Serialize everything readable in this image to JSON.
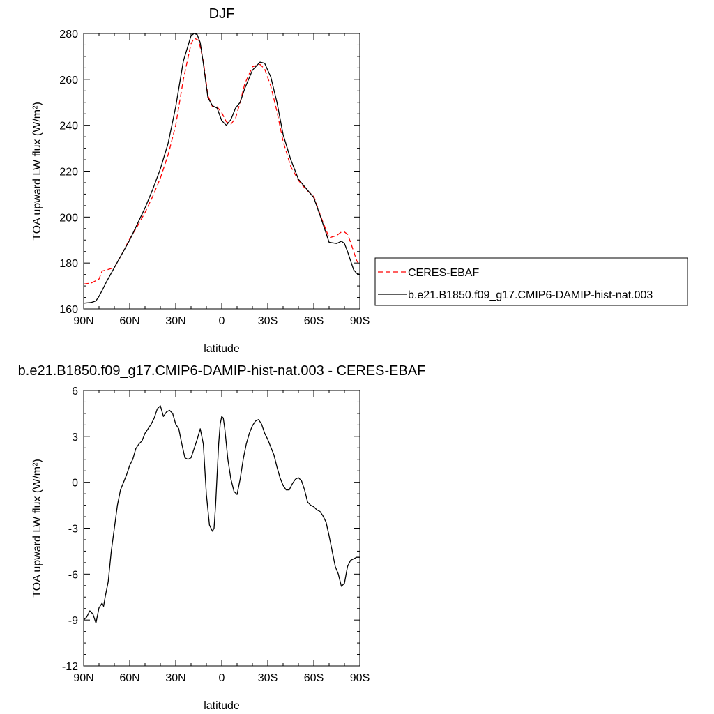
{
  "chart_data": [
    {
      "type": "line",
      "title": "DJF",
      "xlabel": "latitude",
      "ylabel": "TOA upward LW flux (W/m²)",
      "xlim": [
        90,
        -90
      ],
      "ylim": [
        160,
        280
      ],
      "xticks": [
        90,
        60,
        30,
        0,
        -30,
        -60,
        -90
      ],
      "xtick_labels": [
        "90N",
        "60N",
        "30N",
        "0",
        "30S",
        "60S",
        "90S"
      ],
      "yticks": [
        160,
        180,
        200,
        220,
        240,
        260,
        280
      ],
      "ytick_labels": [
        "160",
        "180",
        "200",
        "220",
        "240",
        "260",
        "280"
      ],
      "legend_position": "right",
      "series": [
        {
          "name": "CERES-EBAF",
          "color": "#ff0000",
          "dash": "dashed",
          "x": [
            90,
            85,
            80,
            78,
            75,
            70,
            65,
            60,
            55,
            50,
            45,
            40,
            35,
            30,
            25,
            20,
            18,
            15,
            12,
            9,
            6,
            3,
            0,
            -3,
            -6,
            -9,
            -12,
            -15,
            -20,
            -25,
            -28,
            -32,
            -36,
            -40,
            -45,
            -50,
            -55,
            -60,
            -65,
            -70,
            -75,
            -78,
            -80,
            -82,
            -84,
            -86,
            -88,
            -90
          ],
          "y": [
            170.8,
            171.3,
            173,
            176.5,
            177,
            178,
            184,
            190.5,
            196,
            202,
            209,
            217,
            227,
            240,
            260,
            275.5,
            278,
            277,
            268,
            253,
            248,
            248,
            245.5,
            241.5,
            240.5,
            243,
            250,
            258,
            265.5,
            266.5,
            264.5,
            257,
            246,
            233,
            222,
            216,
            212,
            209,
            199.5,
            191,
            192,
            193.5,
            193.5,
            192.5,
            189,
            185,
            181,
            179
          ]
        },
        {
          "name": "b.e21.B1850.f09_g17.CMIP6-DAMIP-hist-nat.003",
          "color": "#000000",
          "dash": "solid",
          "x": [
            90,
            85,
            82,
            80,
            78,
            75,
            70,
            65,
            60,
            55,
            50,
            45,
            40,
            35,
            30,
            25,
            20,
            18,
            16,
            14,
            12,
            9,
            6,
            3,
            0,
            -3,
            -6,
            -9,
            -12,
            -15,
            -20,
            -25,
            -28,
            -32,
            -36,
            -40,
            -45,
            -50,
            -55,
            -60,
            -65,
            -70,
            -75,
            -78,
            -80,
            -82,
            -84,
            -86,
            -88,
            -90
          ],
          "y": [
            162.5,
            162.8,
            163.5,
            165.5,
            168,
            172,
            178,
            184,
            190,
            197,
            204,
            212,
            221,
            232,
            248,
            268,
            279,
            280,
            279.5,
            276,
            267,
            252,
            248.5,
            247.5,
            242,
            240,
            242.5,
            247.5,
            250,
            256,
            264,
            267.5,
            267,
            261,
            250,
            236,
            225,
            216.5,
            212.5,
            208.5,
            199,
            189,
            188.5,
            189.5,
            188.5,
            185,
            181,
            177,
            175.5,
            175
          ]
        }
      ]
    },
    {
      "type": "line",
      "title": "b.e21.B1850.f09_g17.CMIP6-DAMIP-hist-nat.003 - CERES-EBAF",
      "xlabel": "latitude",
      "ylabel": "TOA upward LW flux (W/m²)",
      "xlim": [
        90,
        -90
      ],
      "ylim": [
        -12,
        6
      ],
      "xticks": [
        90,
        60,
        30,
        0,
        -30,
        -60,
        -90
      ],
      "xtick_labels": [
        "90N",
        "60N",
        "30N",
        "0",
        "30S",
        "60S",
        "90S"
      ],
      "yticks": [
        -12,
        -9,
        -6,
        -3,
        0,
        3,
        6
      ],
      "ytick_labels": [
        "-12",
        "-9",
        "-6",
        "-3",
        "0",
        "3",
        "6"
      ],
      "series": [
        {
          "name": "",
          "color": "#000000",
          "dash": "solid",
          "x": [
            90,
            88,
            86,
            84,
            82,
            80,
            78,
            77,
            76,
            74,
            72,
            70,
            68,
            66,
            64,
            62,
            60,
            58,
            56,
            54,
            52,
            50,
            48,
            46,
            44,
            42,
            40,
            38,
            36,
            34,
            32,
            30,
            28,
            26,
            24,
            22,
            20,
            18,
            16,
            14,
            12,
            10,
            8,
            6,
            5,
            4,
            3,
            2,
            1,
            0,
            -1,
            -2,
            -4,
            -6,
            -8,
            -10,
            -12,
            -14,
            -16,
            -18,
            -20,
            -22,
            -24,
            -26,
            -28,
            -30,
            -32,
            -34,
            -36,
            -38,
            -40,
            -42,
            -44,
            -46,
            -48,
            -50,
            -52,
            -54,
            -56,
            -58,
            -60,
            -62,
            -64,
            -66,
            -68,
            -70,
            -72,
            -74,
            -76,
            -78,
            -80,
            -82,
            -84,
            -86,
            -88,
            -89,
            -90
          ],
          "y": [
            -9,
            -8.8,
            -8.4,
            -8.6,
            -9.2,
            -8.2,
            -7.9,
            -8.1,
            -7.5,
            -6.5,
            -4.5,
            -3,
            -1.5,
            -0.5,
            0,
            0.5,
            1.1,
            1.5,
            2.2,
            2.5,
            2.7,
            3.2,
            3.5,
            3.8,
            4.2,
            4.8,
            5,
            4.3,
            4.6,
            4.7,
            4.5,
            3.8,
            3.5,
            2.5,
            1.6,
            1.5,
            1.6,
            2.2,
            2.8,
            3.5,
            2.5,
            -0.8,
            -2.8,
            -3.2,
            -3,
            -1.5,
            0.5,
            2.5,
            3.8,
            4.3,
            4.2,
            3.5,
            1.5,
            0.2,
            -0.6,
            -0.8,
            0.2,
            1.5,
            2.5,
            3.2,
            3.7,
            4,
            4.1,
            3.8,
            3.2,
            2.8,
            2.3,
            1.8,
            1,
            0.3,
            -0.2,
            -0.5,
            -0.5,
            -0.1,
            0.2,
            0.3,
            0.1,
            -0.5,
            -1.3,
            -1.5,
            -1.6,
            -1.8,
            -1.9,
            -2.2,
            -2.6,
            -3.5,
            -4.5,
            -5.5,
            -6,
            -6.8,
            -6.6,
            -5.5,
            -5.1,
            -5,
            -4.9,
            -4.9,
            -4.9
          ]
        }
      ]
    }
  ]
}
